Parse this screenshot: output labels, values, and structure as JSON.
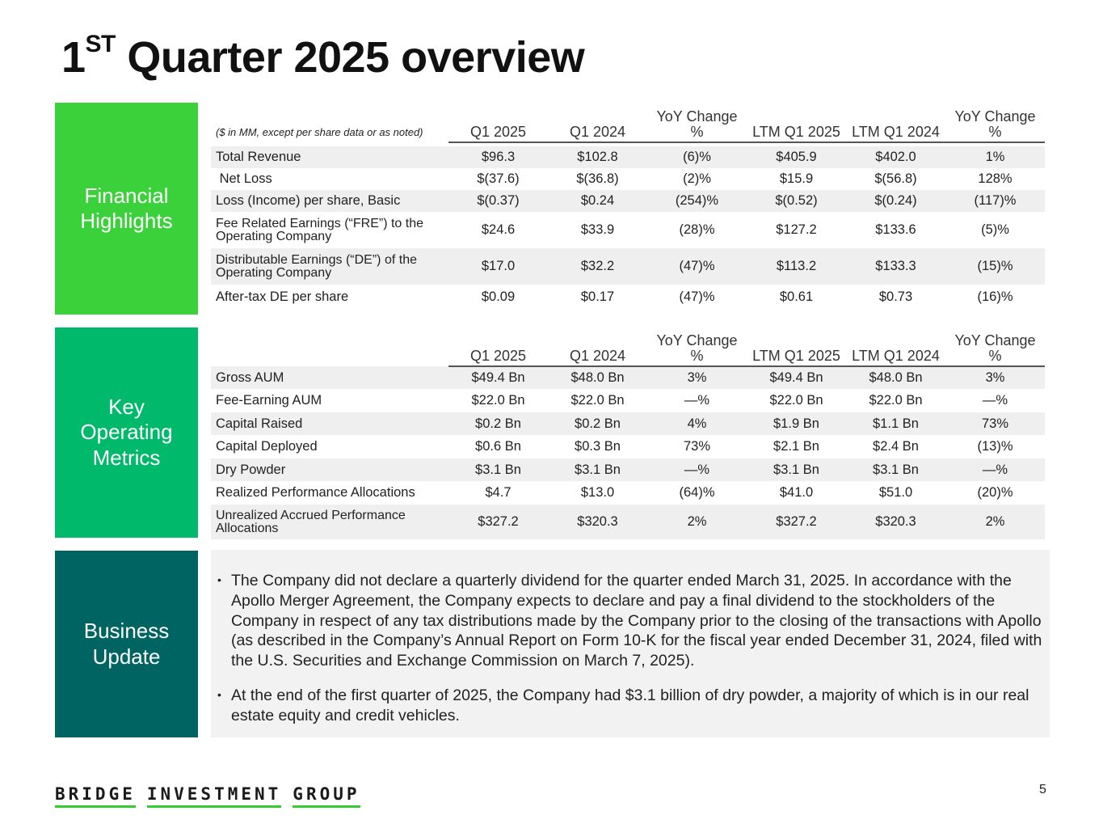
{
  "title": {
    "prefix": "1",
    "sup": "ST",
    "main": " Quarter 2025 overview"
  },
  "sections": {
    "financial": {
      "lines": [
        "Financial",
        "Highlights"
      ],
      "color": "#3bd13b"
    },
    "operating": {
      "lines": [
        "Key",
        "Operating",
        "Metrics"
      ],
      "color": "#00b96b"
    },
    "business": {
      "lines": [
        "Business",
        "Update"
      ],
      "color": "#006462"
    }
  },
  "financial_table": {
    "note": "($ in MM, except per share data or as noted)",
    "headers": [
      "Q1 2025",
      "Q1 2024",
      "YoY Change %",
      "LTM Q1 2025",
      "LTM Q1 2024",
      "YoY Change %"
    ],
    "rows": [
      {
        "label": "Total Revenue",
        "values": [
          "$96.3",
          "$102.8",
          "(6)%",
          "$405.9",
          "$402.0",
          "1%"
        ]
      },
      {
        "label": " Net Loss",
        "values": [
          "$(37.6)",
          "$(36.8)",
          "(2)%",
          "$15.9",
          "$(56.8)",
          "128%"
        ]
      },
      {
        "label": "Loss (Income) per share, Basic",
        "values": [
          "$(0.37)",
          "$0.24",
          "(254)%",
          "$(0.52)",
          "$(0.24)",
          "(117)%"
        ]
      },
      {
        "label": "Fee Related Earnings (“FRE”) to the Operating Company",
        "values": [
          "$24.6",
          "$33.9",
          "(28)%",
          "$127.2",
          "$133.6",
          "(5)%"
        ]
      },
      {
        "label": "Distributable Earnings (“DE”) of the Operating Company",
        "values": [
          "$17.0",
          "$32.2",
          "(47)%",
          "$113.2",
          "$133.3",
          "(15)%"
        ]
      },
      {
        "label": "After-tax DE per share",
        "values": [
          "$0.09",
          "$0.17",
          "(47)%",
          "$0.61",
          "$0.73",
          "(16)%"
        ]
      }
    ]
  },
  "operating_table": {
    "headers": [
      "Q1 2025",
      "Q1 2024",
      "YoY Change %",
      "LTM Q1 2025",
      "LTM Q1 2024",
      "YoY Change %"
    ],
    "rows": [
      {
        "label": "Gross AUM",
        "values": [
          "$49.4 Bn",
          "$48.0 Bn",
          "3%",
          "$49.4 Bn",
          "$48.0 Bn",
          "3%"
        ]
      },
      {
        "label": "Fee-Earning AUM",
        "values": [
          "$22.0 Bn",
          "$22.0 Bn",
          "—%",
          "$22.0 Bn",
          "$22.0 Bn",
          "—%"
        ]
      },
      {
        "label": "Capital Raised",
        "values": [
          "$0.2 Bn",
          "$0.2 Bn",
          "4%",
          "$1.9 Bn",
          "$1.1 Bn",
          "73%"
        ]
      },
      {
        "label": "Capital Deployed",
        "values": [
          "$0.6 Bn",
          "$0.3 Bn",
          "73%",
          "$2.1 Bn",
          "$2.4 Bn",
          "(13)%"
        ]
      },
      {
        "label": "Dry Powder",
        "values": [
          "$3.1 Bn",
          "$3.1 Bn",
          "—%",
          "$3.1 Bn",
          "$3.1 Bn",
          "—%"
        ]
      },
      {
        "label": "Realized Performance Allocations",
        "values": [
          "$4.7",
          "$13.0",
          "(64)%",
          "$41.0",
          "$51.0",
          "(20)%"
        ]
      },
      {
        "label": "Unrealized Accrued Performance Allocations",
        "values": [
          "$327.2",
          "$320.3",
          "2%",
          "$327.2",
          "$320.3",
          "2%"
        ]
      }
    ]
  },
  "business_update": {
    "bullets": [
      "The Company did not declare a quarterly dividend for the quarter ended March 31, 2025.  In accordance with the Apollo Merger Agreement, the Company expects to declare and pay a final dividend to the stockholders of the Company in respect of any tax distributions made by the Company prior to the closing of the transactions with Apollo (as described in the Company’s Annual Report on Form 10-K for the fiscal year ended December 31, 2024, filed with the U.S. Securities and Exchange Commission on March 7, 2025).",
      "At the end of the first quarter of 2025, the Company had $3.1 billion of dry powder, a majority of which is in our real estate equity and credit vehicles."
    ]
  },
  "footer": {
    "logo_words": [
      "BRIDGE",
      "INVESTMENT",
      "GROUP"
    ],
    "logo_accent": "#33cc33",
    "page_number": "5"
  }
}
